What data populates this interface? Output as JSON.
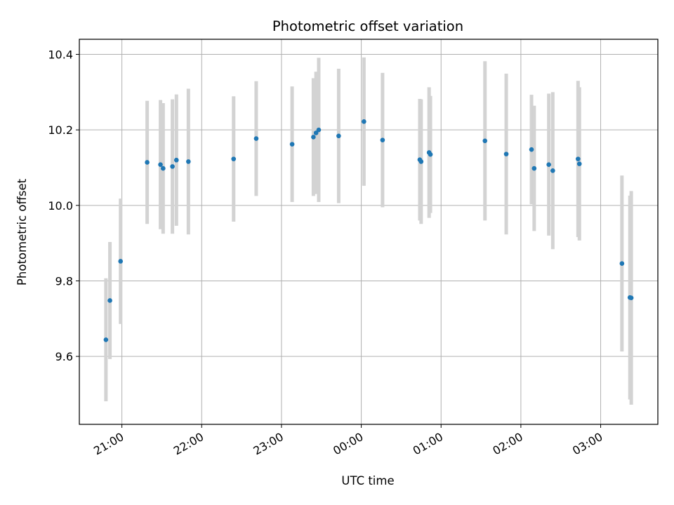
{
  "chart_data": {
    "type": "scatter",
    "title": "Photometric offset variation",
    "xlabel": "UTC time",
    "ylabel": "Photometric offset",
    "x_is_time": true,
    "x_range": [
      "20:28",
      "03:43"
    ],
    "ylim": [
      9.42,
      10.44
    ],
    "x_ticks": [
      "21:00",
      "22:00",
      "23:00",
      "00:00",
      "01:00",
      "02:00",
      "03:00"
    ],
    "y_ticks": [
      9.6,
      9.8,
      10.0,
      10.2,
      10.4
    ],
    "y_tick_labels": [
      "9.6",
      "9.8",
      "10.0",
      "10.2",
      "10.4"
    ],
    "grid": true,
    "legend": "none",
    "marker_color": "#1f77b4",
    "errorbar_color": "#d3d3d3",
    "points": [
      {
        "time": "20:48",
        "y": 9.644,
        "err": 0.163
      },
      {
        "time": "20:51",
        "y": 9.748,
        "err": 0.155
      },
      {
        "time": "20:59",
        "y": 9.852,
        "err": 0.166
      },
      {
        "time": "21:19",
        "y": 10.114,
        "err": 0.163
      },
      {
        "time": "21:29",
        "y": 10.108,
        "err": 0.171
      },
      {
        "time": "21:31",
        "y": 10.098,
        "err": 0.173
      },
      {
        "time": "21:38",
        "y": 10.103,
        "err": 0.178
      },
      {
        "time": "21:41",
        "y": 10.12,
        "err": 0.174
      },
      {
        "time": "21:50",
        "y": 10.116,
        "err": 0.193
      },
      {
        "time": "22:24",
        "y": 10.123,
        "err": 0.166
      },
      {
        "time": "22:41",
        "y": 10.177,
        "err": 0.152
      },
      {
        "time": "23:08",
        "y": 10.162,
        "err": 0.153
      },
      {
        "time": "23:24",
        "y": 10.181,
        "err": 0.156
      },
      {
        "time": "23:26",
        "y": 10.192,
        "err": 0.162
      },
      {
        "time": "23:28",
        "y": 10.2,
        "err": 0.191
      },
      {
        "time": "23:43",
        "y": 10.184,
        "err": 0.178
      },
      {
        "time": "00:02",
        "y": 10.222,
        "err": 0.17
      },
      {
        "time": "00:16",
        "y": 10.173,
        "err": 0.178
      },
      {
        "time": "00:44",
        "y": 10.121,
        "err": 0.161
      },
      {
        "time": "00:45",
        "y": 10.116,
        "err": 0.165
      },
      {
        "time": "00:51",
        "y": 10.14,
        "err": 0.173
      },
      {
        "time": "00:52",
        "y": 10.135,
        "err": 0.155
      },
      {
        "time": "01:33",
        "y": 10.171,
        "err": 0.211
      },
      {
        "time": "01:49",
        "y": 10.136,
        "err": 0.213
      },
      {
        "time": "02:08",
        "y": 10.148,
        "err": 0.145
      },
      {
        "time": "02:10",
        "y": 10.098,
        "err": 0.166
      },
      {
        "time": "02:21",
        "y": 10.108,
        "err": 0.188
      },
      {
        "time": "02:24",
        "y": 10.092,
        "err": 0.208
      },
      {
        "time": "02:43",
        "y": 10.123,
        "err": 0.207
      },
      {
        "time": "02:44",
        "y": 10.11,
        "err": 0.203
      },
      {
        "time": "03:16",
        "y": 9.846,
        "err": 0.233
      },
      {
        "time": "03:22",
        "y": 9.756,
        "err": 0.27
      },
      {
        "time": "03:23",
        "y": 9.755,
        "err": 0.283
      }
    ]
  }
}
